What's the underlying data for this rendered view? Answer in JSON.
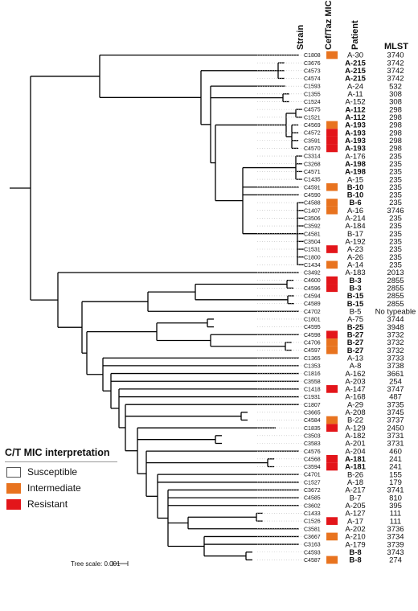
{
  "headers": {
    "strain": "Strain",
    "mic": "Cef/Taz MIC",
    "patient": "Patient",
    "mlst": "MLST"
  },
  "colors": {
    "intermediate": "#E8731F",
    "resistant": "#E3151A",
    "susceptible": "#FFFFFF",
    "branch": "#000000",
    "leader": "#bbbbbb"
  },
  "legend": {
    "title": "C/T MIC interpretation",
    "items": [
      {
        "label": "Susceptible",
        "color": "#FFFFFF"
      },
      {
        "label": "Intermediate",
        "color": "#E8731F"
      },
      {
        "label": "Resistant",
        "color": "#E3151A"
      }
    ]
  },
  "scale_label": "Tree scale: 0.001",
  "rows": [
    {
      "strain": "C1808",
      "mic": "I",
      "patient": "A-30",
      "bold": false,
      "mlst": "3740"
    },
    {
      "strain": "C3676",
      "mic": "",
      "patient": "A-215",
      "bold": true,
      "mlst": "3742"
    },
    {
      "strain": "C4573",
      "mic": "",
      "patient": "A-215",
      "bold": true,
      "mlst": "3742"
    },
    {
      "strain": "C4574",
      "mic": "",
      "patient": "A-215",
      "bold": true,
      "mlst": "3742"
    },
    {
      "strain": "C1593",
      "mic": "",
      "patient": "A-24",
      "bold": false,
      "mlst": "532"
    },
    {
      "strain": "C1355",
      "mic": "",
      "patient": "A-11",
      "bold": false,
      "mlst": "308"
    },
    {
      "strain": "C1524",
      "mic": "",
      "patient": "A-152",
      "bold": false,
      "mlst": "308"
    },
    {
      "strain": "C4575",
      "mic": "",
      "patient": "A-112",
      "bold": true,
      "mlst": "298"
    },
    {
      "strain": "C1521",
      "mic": "",
      "patient": "A-112",
      "bold": true,
      "mlst": "298"
    },
    {
      "strain": "C4569",
      "mic": "I",
      "patient": "A-193",
      "bold": true,
      "mlst": "298"
    },
    {
      "strain": "C4572",
      "mic": "R",
      "patient": "A-193",
      "bold": true,
      "mlst": "298"
    },
    {
      "strain": "C3591",
      "mic": "R",
      "patient": "A-193",
      "bold": true,
      "mlst": "298"
    },
    {
      "strain": "C4570",
      "mic": "R",
      "patient": "A-193",
      "bold": true,
      "mlst": "298"
    },
    {
      "strain": "C3314",
      "mic": "",
      "patient": "A-176",
      "bold": false,
      "mlst": "235"
    },
    {
      "strain": "C3268",
      "mic": "",
      "patient": "A-198",
      "bold": true,
      "mlst": "235"
    },
    {
      "strain": "C4571",
      "mic": "",
      "patient": "A-198",
      "bold": true,
      "mlst": "235"
    },
    {
      "strain": "C1435",
      "mic": "",
      "patient": "A-15",
      "bold": false,
      "mlst": "235"
    },
    {
      "strain": "C4591",
      "mic": "I",
      "patient": "B-10",
      "bold": true,
      "mlst": "235"
    },
    {
      "strain": "C4590",
      "mic": "",
      "patient": "B-10",
      "bold": true,
      "mlst": "235"
    },
    {
      "strain": "C4588",
      "mic": "I",
      "patient": "B-6",
      "bold": true,
      "mlst": "235"
    },
    {
      "strain": "C1407",
      "mic": "I",
      "patient": "A-16",
      "bold": false,
      "mlst": "3746"
    },
    {
      "strain": "C3506",
      "mic": "",
      "patient": "A-214",
      "bold": false,
      "mlst": "235"
    },
    {
      "strain": "C3592",
      "mic": "",
      "patient": "A-184",
      "bold": false,
      "mlst": "235"
    },
    {
      "strain": "C4581",
      "mic": "",
      "patient": "B-17",
      "bold": false,
      "mlst": "235"
    },
    {
      "strain": "C3504",
      "mic": "",
      "patient": "A-192",
      "bold": false,
      "mlst": "235"
    },
    {
      "strain": "C1531",
      "mic": "R",
      "patient": "A-23",
      "bold": false,
      "mlst": "235"
    },
    {
      "strain": "C1800",
      "mic": "",
      "patient": "A-26",
      "bold": false,
      "mlst": "235"
    },
    {
      "strain": "C1434",
      "mic": "I",
      "patient": "A-14",
      "bold": false,
      "mlst": "235"
    },
    {
      "strain": "C3492",
      "mic": "",
      "patient": "A-183",
      "bold": false,
      "mlst": "2013"
    },
    {
      "strain": "C4600",
      "mic": "R",
      "patient": "B-3",
      "bold": true,
      "mlst": "2855"
    },
    {
      "strain": "C4596",
      "mic": "R",
      "patient": "B-3",
      "bold": true,
      "mlst": "2855"
    },
    {
      "strain": "C4594",
      "mic": "",
      "patient": "B-15",
      "bold": true,
      "mlst": "2855"
    },
    {
      "strain": "C4589",
      "mic": "",
      "patient": "B-15",
      "bold": true,
      "mlst": "2855"
    },
    {
      "strain": "C4702",
      "mic": "",
      "patient": "B-5",
      "bold": false,
      "mlst": "No typeable"
    },
    {
      "strain": "C1801",
      "mic": "",
      "patient": "A-75",
      "bold": false,
      "mlst": "3744"
    },
    {
      "strain": "C4595",
      "mic": "",
      "patient": "B-25",
      "bold": true,
      "mlst": "3948"
    },
    {
      "strain": "C4598",
      "mic": "R",
      "patient": "B-27",
      "bold": true,
      "mlst": "3732"
    },
    {
      "strain": "C4706",
      "mic": "I",
      "patient": "B-27",
      "bold": true,
      "mlst": "3732"
    },
    {
      "strain": "C4597",
      "mic": "I",
      "patient": "B-27",
      "bold": true,
      "mlst": "3732"
    },
    {
      "strain": "C1365",
      "mic": "",
      "patient": "A-13",
      "bold": false,
      "mlst": "3733"
    },
    {
      "strain": "C1353",
      "mic": "",
      "patient": "A-8",
      "bold": false,
      "mlst": "3738"
    },
    {
      "strain": "C1816",
      "mic": "",
      "patient": "A-162",
      "bold": false,
      "mlst": "3661"
    },
    {
      "strain": "C3558",
      "mic": "",
      "patient": "A-203",
      "bold": false,
      "mlst": "254"
    },
    {
      "strain": "C1418",
      "mic": "R",
      "patient": "A-147",
      "bold": false,
      "mlst": "3747"
    },
    {
      "strain": "C1931",
      "mic": "",
      "patient": "A-168",
      "bold": false,
      "mlst": "487"
    },
    {
      "strain": "C1807",
      "mic": "",
      "patient": "A-29",
      "bold": false,
      "mlst": "3735"
    },
    {
      "strain": "C3665",
      "mic": "",
      "patient": "A-208",
      "bold": false,
      "mlst": "3745"
    },
    {
      "strain": "C4584",
      "mic": "I",
      "patient": "B-22",
      "bold": false,
      "mlst": "3737"
    },
    {
      "strain": "C1835",
      "mic": "R",
      "patient": "A-129",
      "bold": false,
      "mlst": "2450"
    },
    {
      "strain": "C3503",
      "mic": "",
      "patient": "A-182",
      "bold": false,
      "mlst": "3731"
    },
    {
      "strain": "C3583",
      "mic": "",
      "patient": "A-201",
      "bold": false,
      "mlst": "3731"
    },
    {
      "strain": "C4576",
      "mic": "",
      "patient": "A-204",
      "bold": false,
      "mlst": "460"
    },
    {
      "strain": "C4568",
      "mic": "R",
      "patient": "A-181",
      "bold": true,
      "mlst": "241"
    },
    {
      "strain": "C3594",
      "mic": "R",
      "patient": "A-181",
      "bold": true,
      "mlst": "241"
    },
    {
      "strain": "C4701",
      "mic": "",
      "patient": "B-26",
      "bold": false,
      "mlst": "155"
    },
    {
      "strain": "C1527",
      "mic": "",
      "patient": "A-18",
      "bold": false,
      "mlst": "179"
    },
    {
      "strain": "C3672",
      "mic": "",
      "patient": "A-217",
      "bold": false,
      "mlst": "3741"
    },
    {
      "strain": "C4585",
      "mic": "",
      "patient": "B-7",
      "bold": false,
      "mlst": "810"
    },
    {
      "strain": "C3602",
      "mic": "",
      "patient": "A-205",
      "bold": false,
      "mlst": "395"
    },
    {
      "strain": "C1433",
      "mic": "",
      "patient": "A-127",
      "bold": false,
      "mlst": "111"
    },
    {
      "strain": "C1526",
      "mic": "R",
      "patient": "A-17",
      "bold": false,
      "mlst": "111"
    },
    {
      "strain": "C3581",
      "mic": "",
      "patient": "A-202",
      "bold": false,
      "mlst": "3736"
    },
    {
      "strain": "C3667",
      "mic": "I",
      "patient": "A-210",
      "bold": false,
      "mlst": "3734"
    },
    {
      "strain": "C3163",
      "mic": "",
      "patient": "A-179",
      "bold": false,
      "mlst": "3739"
    },
    {
      "strain": "C4593",
      "mic": "",
      "patient": "B-8",
      "bold": true,
      "mlst": "3743"
    },
    {
      "strain": "C4587",
      "mic": "I",
      "patient": "B-8",
      "bold": true,
      "mlst": "274"
    }
  ]
}
